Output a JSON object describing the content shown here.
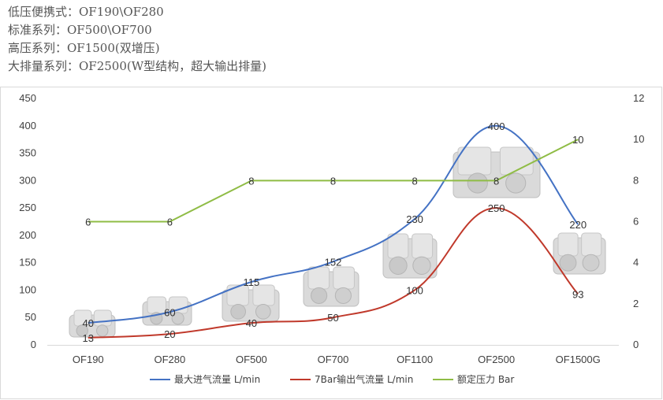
{
  "notes": [
    "低压便携式：OF190\\OF280",
    "标准系列：OF500\\OF700",
    "高压系列：OF1500(双增压)",
    "大排量系列：OF2500(W型结构，超大输出排量)"
  ],
  "chart_data": {
    "type": "line",
    "categories": [
      "OF190",
      "OF280",
      "OF500",
      "OF700",
      "OF1100",
      "OF2500",
      "OF1500G"
    ],
    "series": [
      {
        "name": "最大进气流量 L/min",
        "axis": "left",
        "color": "#4472c4",
        "values": [
          40,
          60,
          115,
          152,
          230,
          400,
          220
        ]
      },
      {
        "name": "7Bar输出气流量 L/min",
        "axis": "left",
        "color": "#c0392b",
        "values": [
          13,
          20,
          40,
          50,
          100,
          250,
          93
        ]
      },
      {
        "name": "额定压力 Bar",
        "axis": "right",
        "color": "#8fbc45",
        "values": [
          6,
          6,
          8,
          8,
          8,
          8,
          10
        ]
      }
    ],
    "y_left": {
      "range": [
        0,
        450
      ],
      "ticks": [
        0,
        50,
        100,
        150,
        200,
        250,
        300,
        350,
        400,
        450
      ]
    },
    "y_right": {
      "range": [
        0,
        12
      ],
      "ticks": [
        0,
        2,
        4,
        6,
        8,
        10,
        12
      ]
    },
    "grid": false,
    "legend_position": "bottom"
  }
}
